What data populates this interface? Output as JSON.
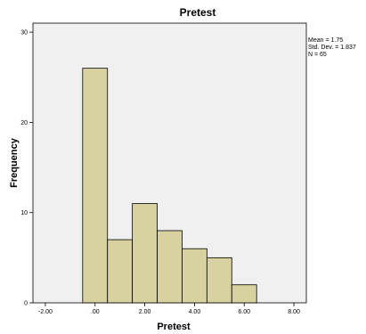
{
  "chart_data": {
    "type": "bar",
    "title": "Pretest",
    "xlabel": "Pretest",
    "ylabel": "Frequency",
    "xlim": [
      -2.5,
      8.5
    ],
    "ylim": [
      0,
      31
    ],
    "x_ticks": [
      -2,
      0,
      2,
      4,
      6,
      8
    ],
    "x_tick_labels": [
      "-2.00",
      ".00",
      "2.00",
      "4.00",
      "6.00",
      "8.00"
    ],
    "y_ticks": [
      0,
      10,
      20,
      30
    ],
    "y_tick_labels": [
      "0",
      "10",
      "20",
      "30"
    ],
    "bin_width": 1,
    "bins": [
      {
        "start": -0.5,
        "end": 0.5,
        "count": 26
      },
      {
        "start": 0.5,
        "end": 1.5,
        "count": 7
      },
      {
        "start": 1.5,
        "end": 2.5,
        "count": 11
      },
      {
        "start": 2.5,
        "end": 3.5,
        "count": 8
      },
      {
        "start": 3.5,
        "end": 4.5,
        "count": 6
      },
      {
        "start": 4.5,
        "end": 5.5,
        "count": 5
      },
      {
        "start": 5.5,
        "end": 6.5,
        "count": 2
      }
    ],
    "bar_color": "#d7d2a0",
    "bar_stroke": "#000000",
    "plot_background": "#f0f0f0",
    "grid": false,
    "legend": "none",
    "stats": {
      "mean_label": "Mean = 1.75",
      "std_label": "Std. Dev. = 1.837",
      "n_label": "N = 65"
    }
  }
}
